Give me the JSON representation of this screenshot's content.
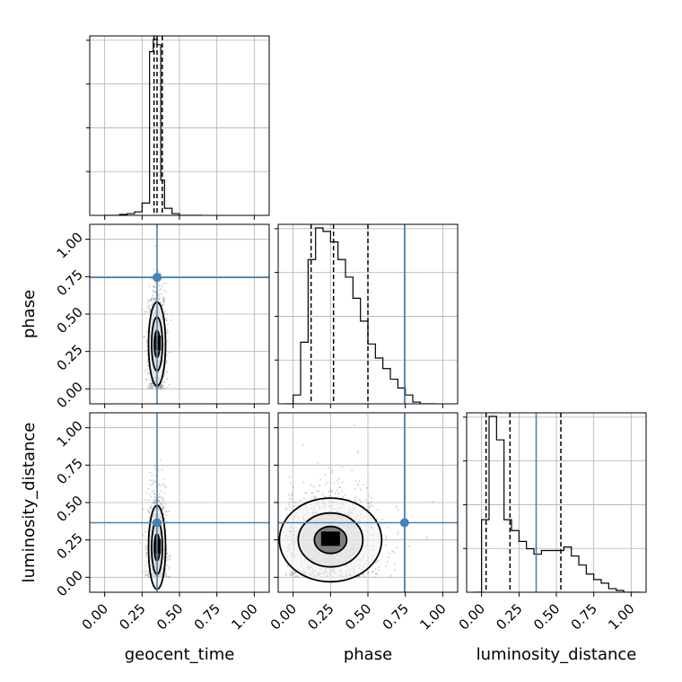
{
  "chart_data": {
    "type": "corner",
    "parameters": [
      "geocent_time",
      "phase",
      "luminosity_distance"
    ],
    "axis_range": [
      -0.1,
      1.1
    ],
    "ticks": [
      "0.00",
      "0.25",
      "0.50",
      "0.75",
      "1.00"
    ],
    "tick_values": [
      0,
      0.25,
      0.5,
      0.75,
      1.0
    ],
    "grid": true,
    "truths": {
      "geocent_time": 0.35,
      "phase": 0.745,
      "luminosity_distance": 0.365
    },
    "truth_color": "#4682b4",
    "histograms": {
      "geocent_time": {
        "bin_edges": [
          0.0,
          0.05,
          0.1,
          0.15,
          0.2,
          0.25,
          0.3,
          0.325,
          0.35,
          0.375,
          0.4,
          0.45,
          0.5,
          0.55,
          0.6,
          0.65
        ],
        "heights": [
          0.0,
          0.0,
          0.005,
          0.01,
          0.02,
          0.07,
          0.93,
          1.0,
          0.97,
          0.2,
          0.04,
          0.01,
          0.0,
          0.0,
          0.0
        ],
        "quantiles": [
          0.33,
          0.35,
          0.385
        ]
      },
      "phase": {
        "bin_edges": [
          -0.05,
          0.0,
          0.05,
          0.1,
          0.15,
          0.2,
          0.25,
          0.3,
          0.35,
          0.4,
          0.45,
          0.5,
          0.55,
          0.6,
          0.65,
          0.7,
          0.75,
          0.8,
          0.85,
          0.9,
          0.95
        ],
        "heights": [
          0.0,
          0.05,
          0.35,
          0.82,
          1.0,
          0.98,
          0.92,
          0.82,
          0.72,
          0.6,
          0.47,
          0.34,
          0.26,
          0.2,
          0.14,
          0.09,
          0.05,
          0.01,
          0.0,
          0.0
        ],
        "quantiles": [
          0.12,
          0.27,
          0.5
        ]
      },
      "luminosity_distance": {
        "bin_edges": [
          -0.05,
          0.0,
          0.05,
          0.1,
          0.15,
          0.2,
          0.25,
          0.3,
          0.35,
          0.4,
          0.45,
          0.5,
          0.55,
          0.6,
          0.65,
          0.7,
          0.75,
          0.8,
          0.85,
          0.9,
          0.95,
          1.0,
          1.05
        ],
        "heights": [
          0.0,
          0.4,
          0.97,
          0.84,
          0.4,
          0.34,
          0.28,
          0.24,
          0.21,
          0.23,
          0.23,
          0.23,
          0.25,
          0.2,
          0.15,
          0.1,
          0.07,
          0.05,
          0.02,
          0.01,
          0.0,
          0.0
        ],
        "quantiles": [
          0.03,
          0.19,
          0.53
        ]
      }
    },
    "scatter_2d": {
      "geocent_time-phase": {
        "center": [
          0.35,
          0.3
        ],
        "spread": [
          0.03,
          0.2
        ]
      },
      "geocent_time-luminosity_distance": {
        "center": [
          0.35,
          0.2
        ],
        "spread": [
          0.03,
          0.2
        ]
      },
      "phase-luminosity_distance": {
        "center": [
          0.25,
          0.25
        ],
        "spread": [
          0.18,
          0.2
        ]
      }
    }
  }
}
